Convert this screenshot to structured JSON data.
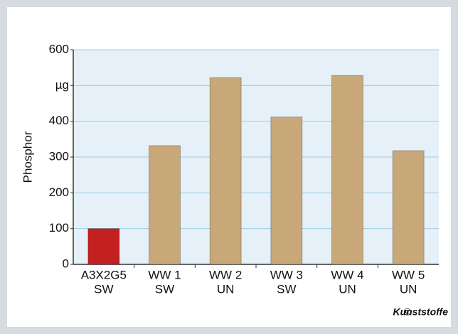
{
  "chart_data": {
    "type": "bar",
    "ylabel": "Phosphor",
    "categories": [
      [
        "A3X2G5",
        "SW"
      ],
      [
        "WW 1",
        "SW"
      ],
      [
        "WW 2",
        "UN"
      ],
      [
        "WW 3",
        "SW"
      ],
      [
        "WW 4",
        "UN"
      ],
      [
        "WW 5",
        "UN"
      ]
    ],
    "values": [
      100,
      332,
      522,
      412,
      528,
      318
    ],
    "colors": [
      "#c42020",
      "#c8a878",
      "#c8a878",
      "#c8a878",
      "#c8a878",
      "#c8a878"
    ],
    "ylim": [
      0,
      600
    ],
    "yticks": [
      0,
      100,
      200,
      300,
      400,
      {
        "value": 500,
        "label": "µg"
      },
      600
    ],
    "grid": true,
    "copyright_symbol": "©",
    "source": "Kunststoffe"
  }
}
